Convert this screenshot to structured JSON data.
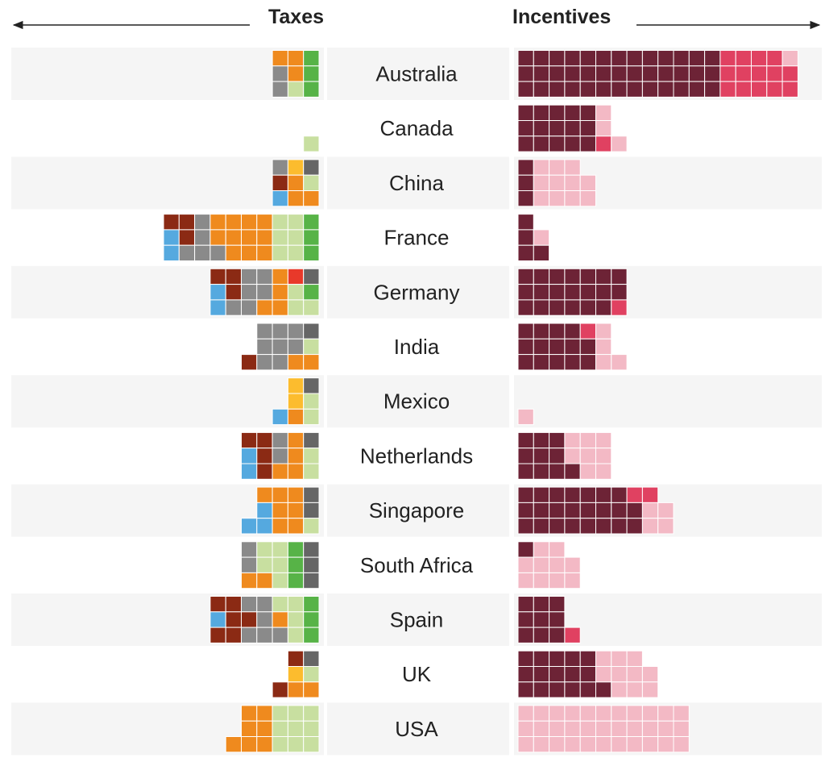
{
  "chart_data": {
    "type": "waffle",
    "left_header": "Taxes",
    "right_header": "Incentives",
    "colors": {
      "tax": {
        "dred": "#8b2a14",
        "blue": "#55a9df",
        "grey": "#8a8a8a",
        "dgrey": "#666666",
        "orange": "#ef8a1e",
        "yellow": "#fcbc2e",
        "red": "#e8392a",
        "lgreen": "#c8dfa0",
        "green": "#57b347"
      },
      "incentive": {
        "maroon": "#6d2336",
        "crimson": "#e04161",
        "pink": "#f3b9c5"
      }
    },
    "countries": [
      {
        "name": "Australia",
        "taxes": [
          [
            "orange",
            "orange",
            "green"
          ],
          [
            "grey",
            "orange",
            "green"
          ],
          [
            "grey",
            "lgreen",
            "green"
          ]
        ],
        "incentives": [
          [
            "maroon",
            "maroon",
            "maroon",
            "maroon",
            "maroon",
            "maroon",
            "maroon",
            "maroon",
            "maroon",
            "maroon",
            "maroon",
            "maroon",
            "maroon",
            "crimson",
            "crimson",
            "crimson",
            "crimson",
            "pink"
          ],
          [
            "maroon",
            "maroon",
            "maroon",
            "maroon",
            "maroon",
            "maroon",
            "maroon",
            "maroon",
            "maroon",
            "maroon",
            "maroon",
            "maroon",
            "maroon",
            "crimson",
            "crimson",
            "crimson",
            "crimson",
            "crimson"
          ],
          [
            "maroon",
            "maroon",
            "maroon",
            "maroon",
            "maroon",
            "maroon",
            "maroon",
            "maroon",
            "maroon",
            "maroon",
            "maroon",
            "maroon",
            "maroon",
            "crimson",
            "crimson",
            "crimson",
            "crimson",
            "crimson"
          ]
        ]
      },
      {
        "name": "Canada",
        "taxes": [
          [],
          [],
          [
            "lgreen"
          ]
        ],
        "incentives": [
          [
            "maroon",
            "maroon",
            "maroon",
            "maroon",
            "maroon",
            "pink"
          ],
          [
            "maroon",
            "maroon",
            "maroon",
            "maroon",
            "maroon",
            "pink"
          ],
          [
            "maroon",
            "maroon",
            "maroon",
            "maroon",
            "maroon",
            "crimson",
            "pink"
          ]
        ]
      },
      {
        "name": "China",
        "taxes": [
          [
            "grey",
            "yellow",
            "dgrey"
          ],
          [
            "dred",
            "orange",
            "lgreen"
          ],
          [
            "blue",
            "orange",
            "orange"
          ]
        ],
        "incentives": [
          [
            "maroon",
            "pink",
            "pink",
            "pink"
          ],
          [
            "maroon",
            "pink",
            "pink",
            "pink",
            "pink"
          ],
          [
            "maroon",
            "pink",
            "pink",
            "pink",
            "pink"
          ]
        ]
      },
      {
        "name": "France",
        "taxes": [
          [
            "dred",
            "dred",
            "grey",
            "orange",
            "orange",
            "orange",
            "orange",
            "lgreen",
            "lgreen",
            "green"
          ],
          [
            "blue",
            "dred",
            "grey",
            "orange",
            "orange",
            "orange",
            "orange",
            "lgreen",
            "lgreen",
            "green"
          ],
          [
            "blue",
            "grey",
            "grey",
            "grey",
            "orange",
            "orange",
            "orange",
            "lgreen",
            "lgreen",
            "green"
          ]
        ],
        "incentives": [
          [
            "maroon"
          ],
          [
            "maroon",
            "pink"
          ],
          [
            "maroon",
            "maroon"
          ]
        ]
      },
      {
        "name": "Germany",
        "taxes": [
          [
            "dred",
            "dred",
            "grey",
            "grey",
            "orange",
            "red",
            "dgrey"
          ],
          [
            "blue",
            "dred",
            "grey",
            "grey",
            "orange",
            "lgreen",
            "green"
          ],
          [
            "blue",
            "grey",
            "grey",
            "orange",
            "orange",
            "lgreen",
            "lgreen"
          ]
        ],
        "incentives": [
          [
            "maroon",
            "maroon",
            "maroon",
            "maroon",
            "maroon",
            "maroon",
            "maroon"
          ],
          [
            "maroon",
            "maroon",
            "maroon",
            "maroon",
            "maroon",
            "maroon",
            "maroon"
          ],
          [
            "maroon",
            "maroon",
            "maroon",
            "maroon",
            "maroon",
            "maroon",
            "crimson"
          ]
        ]
      },
      {
        "name": "India",
        "taxes": [
          [
            "grey",
            "grey",
            "grey",
            "dgrey"
          ],
          [
            "grey",
            "grey",
            "grey",
            "lgreen"
          ],
          [
            "dred",
            "grey",
            "grey",
            "orange",
            "orange"
          ]
        ],
        "incentives": [
          [
            "maroon",
            "maroon",
            "maroon",
            "maroon",
            "crimson",
            "pink"
          ],
          [
            "maroon",
            "maroon",
            "maroon",
            "maroon",
            "maroon",
            "pink"
          ],
          [
            "maroon",
            "maroon",
            "maroon",
            "maroon",
            "maroon",
            "pink",
            "pink"
          ]
        ]
      },
      {
        "name": "Mexico",
        "taxes": [
          [
            "yellow",
            "dgrey"
          ],
          [
            "yellow",
            "lgreen"
          ],
          [
            "blue",
            "orange",
            "lgreen"
          ]
        ],
        "incentives": [
          [],
          [],
          [
            "pink"
          ]
        ]
      },
      {
        "name": "Netherlands",
        "taxes": [
          [
            "dred",
            "dred",
            "grey",
            "orange",
            "dgrey"
          ],
          [
            "blue",
            "dred",
            "grey",
            "orange",
            "lgreen"
          ],
          [
            "blue",
            "dred",
            "orange",
            "orange",
            "lgreen"
          ]
        ],
        "incentives": [
          [
            "maroon",
            "maroon",
            "maroon",
            "pink",
            "pink",
            "pink"
          ],
          [
            "maroon",
            "maroon",
            "maroon",
            "pink",
            "pink",
            "pink"
          ],
          [
            "maroon",
            "maroon",
            "maroon",
            "maroon",
            "pink",
            "pink"
          ]
        ]
      },
      {
        "name": "Singapore",
        "taxes": [
          [
            "orange",
            "orange",
            "orange",
            "dgrey"
          ],
          [
            "blue",
            "orange",
            "orange",
            "dgrey"
          ],
          [
            "blue",
            "blue",
            "orange",
            "orange",
            "lgreen"
          ]
        ],
        "incentives": [
          [
            "maroon",
            "maroon",
            "maroon",
            "maroon",
            "maroon",
            "maroon",
            "maroon",
            "crimson",
            "crimson"
          ],
          [
            "maroon",
            "maroon",
            "maroon",
            "maroon",
            "maroon",
            "maroon",
            "maroon",
            "maroon",
            "pink",
            "pink"
          ],
          [
            "maroon",
            "maroon",
            "maroon",
            "maroon",
            "maroon",
            "maroon",
            "maroon",
            "maroon",
            "pink",
            "pink"
          ]
        ]
      },
      {
        "name": "South Africa",
        "taxes": [
          [
            "grey",
            "lgreen",
            "lgreen",
            "green",
            "dgrey"
          ],
          [
            "grey",
            "lgreen",
            "lgreen",
            "green",
            "dgrey"
          ],
          [
            "orange",
            "orange",
            "lgreen",
            "green",
            "dgrey"
          ]
        ],
        "incentives": [
          [
            "maroon",
            "pink",
            "pink"
          ],
          [
            "pink",
            "pink",
            "pink",
            "pink"
          ],
          [
            "pink",
            "pink",
            "pink",
            "pink"
          ]
        ]
      },
      {
        "name": "Spain",
        "taxes": [
          [
            "dred",
            "dred",
            "grey",
            "grey",
            "lgreen",
            "lgreen",
            "green"
          ],
          [
            "blue",
            "dred",
            "dred",
            "grey",
            "orange",
            "lgreen",
            "green"
          ],
          [
            "dred",
            "dred",
            "grey",
            "grey",
            "grey",
            "lgreen",
            "green"
          ]
        ],
        "incentives": [
          [
            "maroon",
            "maroon",
            "maroon"
          ],
          [
            "maroon",
            "maroon",
            "maroon"
          ],
          [
            "maroon",
            "maroon",
            "maroon",
            "crimson"
          ]
        ]
      },
      {
        "name": "UK",
        "taxes": [
          [
            "dred",
            "dgrey"
          ],
          [
            "yellow",
            "lgreen"
          ],
          [
            "dred",
            "orange",
            "orange"
          ]
        ],
        "incentives": [
          [
            "maroon",
            "maroon",
            "maroon",
            "maroon",
            "maroon",
            "pink",
            "pink",
            "pink"
          ],
          [
            "maroon",
            "maroon",
            "maroon",
            "maroon",
            "maroon",
            "pink",
            "pink",
            "pink",
            "pink"
          ],
          [
            "maroon",
            "maroon",
            "maroon",
            "maroon",
            "maroon",
            "maroon",
            "pink",
            "pink",
            "pink"
          ]
        ]
      },
      {
        "name": "USA",
        "taxes": [
          [
            "orange",
            "orange",
            "lgreen",
            "lgreen",
            "lgreen"
          ],
          [
            "orange",
            "orange",
            "lgreen",
            "lgreen",
            "lgreen"
          ],
          [
            "orange",
            "orange",
            "orange",
            "lgreen",
            "lgreen",
            "lgreen"
          ]
        ],
        "incentives": [
          [
            "pink",
            "pink",
            "pink",
            "pink",
            "pink",
            "pink",
            "pink",
            "pink",
            "pink",
            "pink",
            "pink"
          ],
          [
            "pink",
            "pink",
            "pink",
            "pink",
            "pink",
            "pink",
            "pink",
            "pink",
            "pink",
            "pink",
            "pink"
          ],
          [
            "pink",
            "pink",
            "pink",
            "pink",
            "pink",
            "pink",
            "pink",
            "pink",
            "pink",
            "pink",
            "pink"
          ]
        ]
      }
    ]
  }
}
